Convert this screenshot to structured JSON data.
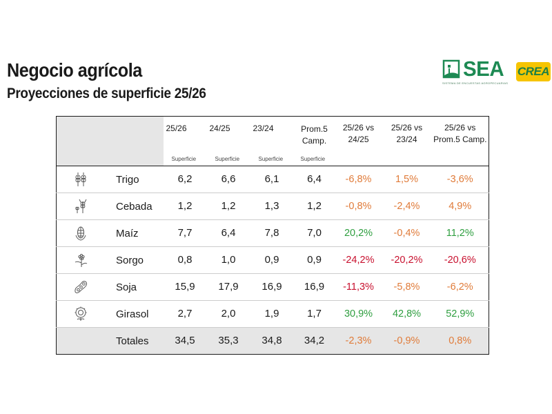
{
  "header": {
    "title": "Negocio agrícola",
    "subtitle": "Proyecciones de superficie 25/26",
    "logo_sea": "SEA",
    "logo_sea_tagline": "SISTEMA DE ENCUESTAS AGROPECUARIAS",
    "logo_crea": "CREA"
  },
  "colors": {
    "negative": "#e07b39",
    "strong_negative": "#c8102e",
    "positive": "#2e9e3f",
    "header_fill": "#e6e6e6",
    "logo_green": "#1d8a53",
    "logo_yellow": "#f6c400"
  },
  "table": {
    "columns": [
      {
        "label": "25/26",
        "sub": "Superficie"
      },
      {
        "label": "24/25",
        "sub": "Superficie"
      },
      {
        "label": "23/24",
        "sub": "Superficie"
      },
      {
        "label": "Prom.5 Camp.",
        "line1": "Prom.5",
        "line2": "Camp.",
        "sub": "Superficie"
      }
    ],
    "comparisons": [
      {
        "line1": "25/26 vs",
        "line2": "24/25"
      },
      {
        "line1": "25/26 vs",
        "line2": "23/24"
      },
      {
        "line1": "25/26 vs",
        "line2": "Prom.5 Camp."
      }
    ],
    "rows": [
      {
        "name": "Trigo",
        "icon": "wheat-icon",
        "values": [
          "6,2",
          "6,6",
          "6,1",
          "6,4"
        ],
        "changes": [
          {
            "v": "-6,8%",
            "t": "negative"
          },
          {
            "v": "1,5%",
            "t": "negative"
          },
          {
            "v": "-3,6%",
            "t": "negative"
          }
        ]
      },
      {
        "name": "Cebada",
        "icon": "barley-icon",
        "values": [
          "1,2",
          "1,2",
          "1,3",
          "1,2"
        ],
        "changes": [
          {
            "v": "-0,8%",
            "t": "negative"
          },
          {
            "v": "-2,4%",
            "t": "negative"
          },
          {
            "v": "4,9%",
            "t": "negative"
          }
        ]
      },
      {
        "name": "Maíz",
        "icon": "corn-icon",
        "values": [
          "7,7",
          "6,4",
          "7,8",
          "7,0"
        ],
        "changes": [
          {
            "v": "20,2%",
            "t": "positive"
          },
          {
            "v": "-0,4%",
            "t": "negative"
          },
          {
            "v": "11,2%",
            "t": "positive"
          }
        ]
      },
      {
        "name": "Sorgo",
        "icon": "sorghum-icon",
        "values": [
          "0,8",
          "1,0",
          "0,9",
          "0,9"
        ],
        "changes": [
          {
            "v": "-24,2%",
            "t": "strong_negative"
          },
          {
            "v": "-20,2%",
            "t": "strong_negative"
          },
          {
            "v": "-20,6%",
            "t": "strong_negative"
          }
        ]
      },
      {
        "name": "Soja",
        "icon": "soybean-icon",
        "values": [
          "15,9",
          "17,9",
          "16,9",
          "16,9"
        ],
        "changes": [
          {
            "v": "-11,3%",
            "t": "strong_negative"
          },
          {
            "v": "-5,8%",
            "t": "negative"
          },
          {
            "v": "-6,2%",
            "t": "negative"
          }
        ]
      },
      {
        "name": "Girasol",
        "icon": "sunflower-icon",
        "values": [
          "2,7",
          "2,0",
          "1,9",
          "1,7"
        ],
        "changes": [
          {
            "v": "30,9%",
            "t": "positive"
          },
          {
            "v": "42,8%",
            "t": "positive"
          },
          {
            "v": "52,9%",
            "t": "positive"
          }
        ]
      }
    ],
    "totals": {
      "label": "Totales",
      "values": [
        "34,5",
        "35,3",
        "34,8",
        "34,2"
      ],
      "changes": [
        {
          "v": "-2,3%",
          "t": "negative"
        },
        {
          "v": "-0,9%",
          "t": "negative"
        },
        {
          "v": "0,8%",
          "t": "negative"
        }
      ]
    }
  }
}
